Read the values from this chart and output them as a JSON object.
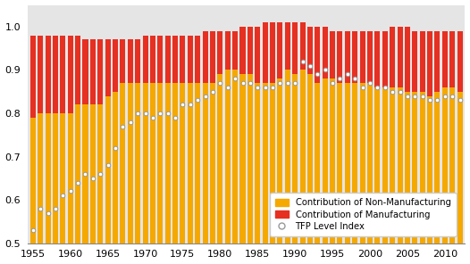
{
  "years": [
    1955,
    1956,
    1957,
    1958,
    1959,
    1960,
    1961,
    1962,
    1963,
    1964,
    1965,
    1966,
    1967,
    1968,
    1969,
    1970,
    1971,
    1972,
    1973,
    1974,
    1975,
    1976,
    1977,
    1978,
    1979,
    1980,
    1981,
    1982,
    1983,
    1984,
    1985,
    1986,
    1987,
    1988,
    1989,
    1990,
    1991,
    1992,
    1993,
    1994,
    1995,
    1996,
    1997,
    1998,
    1999,
    2000,
    2001,
    2002,
    2003,
    2004,
    2005,
    2006,
    2007,
    2008,
    2009,
    2010,
    2011,
    2012
  ],
  "non_manuf_top": [
    0.79,
    0.8,
    0.8,
    0.8,
    0.8,
    0.8,
    0.82,
    0.82,
    0.82,
    0.82,
    0.84,
    0.85,
    0.87,
    0.87,
    0.87,
    0.87,
    0.87,
    0.87,
    0.87,
    0.87,
    0.87,
    0.87,
    0.87,
    0.87,
    0.87,
    0.89,
    0.9,
    0.9,
    0.89,
    0.89,
    0.87,
    0.87,
    0.87,
    0.88,
    0.9,
    0.89,
    0.9,
    0.89,
    0.87,
    0.88,
    0.88,
    0.87,
    0.87,
    0.87,
    0.87,
    0.87,
    0.86,
    0.86,
    0.86,
    0.86,
    0.85,
    0.85,
    0.85,
    0.84,
    0.85,
    0.86,
    0.86,
    0.85
  ],
  "bar_top": [
    0.98,
    0.98,
    0.98,
    0.98,
    0.98,
    0.98,
    0.98,
    0.97,
    0.97,
    0.97,
    0.97,
    0.97,
    0.97,
    0.97,
    0.97,
    0.98,
    0.98,
    0.98,
    0.98,
    0.98,
    0.98,
    0.98,
    0.98,
    0.99,
    0.99,
    0.99,
    0.99,
    0.99,
    1.0,
    1.0,
    1.0,
    1.01,
    1.01,
    1.01,
    1.01,
    1.01,
    1.01,
    1.0,
    1.0,
    1.0,
    0.99,
    0.99,
    0.99,
    0.99,
    0.99,
    0.99,
    0.99,
    0.99,
    1.0,
    1.0,
    1.0,
    0.99,
    0.99,
    0.99,
    0.99,
    0.99,
    0.99,
    0.99
  ],
  "tfp_index": [
    0.53,
    0.58,
    0.57,
    0.58,
    0.61,
    0.62,
    0.64,
    0.66,
    0.65,
    0.66,
    0.68,
    0.72,
    0.77,
    0.78,
    0.8,
    0.8,
    0.79,
    0.8,
    0.8,
    0.79,
    0.82,
    0.82,
    0.83,
    0.84,
    0.85,
    0.87,
    0.86,
    0.88,
    0.87,
    0.87,
    0.86,
    0.86,
    0.86,
    0.87,
    0.87,
    0.87,
    0.92,
    0.91,
    0.89,
    0.9,
    0.87,
    0.88,
    0.89,
    0.88,
    0.86,
    0.87,
    0.86,
    0.86,
    0.85,
    0.85,
    0.84,
    0.84,
    0.84,
    0.83,
    0.83,
    0.84,
    0.84,
    0.83
  ],
  "color_nonmanuf": "#F5A800",
  "color_manuf": "#E63022",
  "color_tfp_face": "#FFFFFF",
  "color_tfp_edge": "#999999",
  "background_color": "#FFFFFF",
  "plot_bg_color": "#E5E5E5",
  "ymin": 0.5,
  "ylim": [
    0.5,
    1.05
  ],
  "yticks": [
    0.5,
    0.6,
    0.7,
    0.8,
    0.9,
    1.0
  ],
  "xticks": [
    1955,
    1960,
    1965,
    1970,
    1975,
    1980,
    1985,
    1990,
    1995,
    2000,
    2005,
    2010
  ],
  "legend_labels": [
    "Contribution of Non-Manufacturing",
    "Contribution of Manufacturing",
    "TFP Level Index"
  ]
}
